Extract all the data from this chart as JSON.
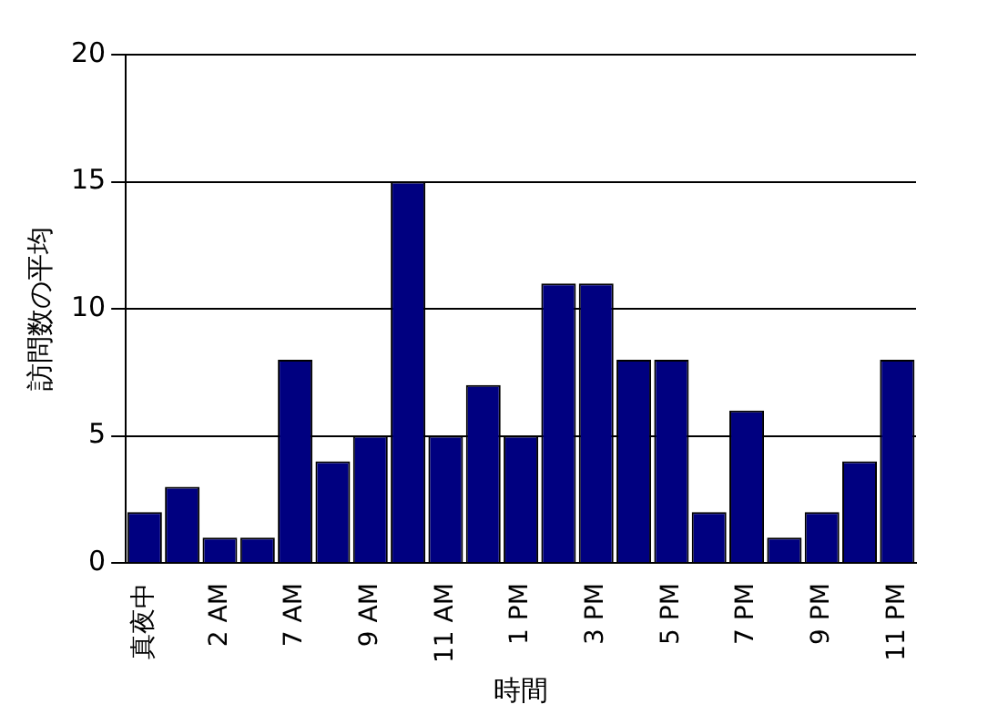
{
  "chart_data": {
    "type": "bar",
    "xlabel": "時間",
    "ylabel": "訪問数の平均",
    "categories": [
      "真夜中",
      null,
      "2 AM",
      null,
      "7 AM",
      null,
      "9 AM",
      null,
      "11 AM",
      null,
      "1 PM",
      null,
      "3 PM",
      null,
      "5 PM",
      null,
      "7 PM",
      null,
      "9 PM",
      null,
      "11 PM"
    ],
    "values": [
      2,
      3,
      1,
      1,
      8,
      4,
      5,
      15,
      5,
      7,
      5,
      11,
      11,
      8,
      8,
      2,
      6,
      1,
      2,
      4,
      8
    ],
    "color": "#000080",
    "ylim": [
      0,
      20
    ],
    "yticks": [
      0,
      5,
      10,
      15,
      20
    ],
    "grid": "y",
    "legend": false
  }
}
